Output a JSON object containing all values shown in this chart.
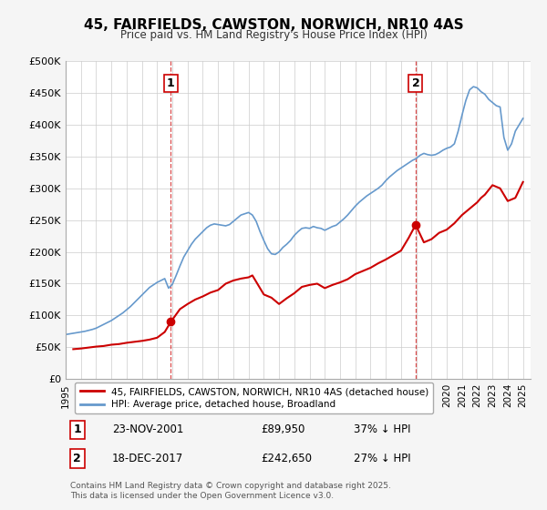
{
  "title": "45, FAIRFIELDS, CAWSTON, NORWICH, NR10 4AS",
  "subtitle": "Price paid vs. HM Land Registry's House Price Index (HPI)",
  "legend_line1": "45, FAIRFIELDS, CAWSTON, NORWICH, NR10 4AS (detached house)",
  "legend_line2": "HPI: Average price, detached house, Broadland",
  "sale1_label": "1",
  "sale1_date": "23-NOV-2001",
  "sale1_price": "£89,950",
  "sale1_hpi": "37% ↓ HPI",
  "sale2_label": "2",
  "sale2_date": "18-DEC-2017",
  "sale2_price": "£242,650",
  "sale2_hpi": "27% ↓ HPI",
  "sale1_x": 2001.9,
  "sale1_y": 89950,
  "sale2_x": 2017.96,
  "sale2_y": 242650,
  "vline1_x": 2001.9,
  "vline2_x": 2017.96,
  "property_color": "#cc0000",
  "hpi_color": "#6699cc",
  "background_color": "#f5f5f5",
  "plot_bg_color": "#ffffff",
  "grid_color": "#cccccc",
  "ylim": [
    0,
    500000
  ],
  "xlim": [
    1995,
    2025.5
  ],
  "yticks": [
    0,
    50000,
    100000,
    150000,
    200000,
    250000,
    300000,
    350000,
    400000,
    450000,
    500000
  ],
  "ytick_labels": [
    "£0",
    "£50K",
    "£100K",
    "£150K",
    "£200K",
    "£250K",
    "£300K",
    "£350K",
    "£400K",
    "£450K",
    "£500K"
  ],
  "xticks": [
    1995,
    1996,
    1997,
    1998,
    1999,
    2000,
    2001,
    2002,
    2003,
    2004,
    2005,
    2006,
    2007,
    2008,
    2009,
    2010,
    2011,
    2012,
    2013,
    2014,
    2015,
    2016,
    2017,
    2018,
    2019,
    2020,
    2021,
    2022,
    2023,
    2024,
    2025
  ],
  "footnote": "Contains HM Land Registry data © Crown copyright and database right 2025.\nThis data is licensed under the Open Government Licence v3.0.",
  "hpi_data_x": [
    1995.0,
    1995.25,
    1995.5,
    1995.75,
    1996.0,
    1996.25,
    1996.5,
    1996.75,
    1997.0,
    1997.25,
    1997.5,
    1997.75,
    1998.0,
    1998.25,
    1998.5,
    1998.75,
    1999.0,
    1999.25,
    1999.5,
    1999.75,
    2000.0,
    2000.25,
    2000.5,
    2000.75,
    2001.0,
    2001.25,
    2001.5,
    2001.75,
    2002.0,
    2002.25,
    2002.5,
    2002.75,
    2003.0,
    2003.25,
    2003.5,
    2003.75,
    2004.0,
    2004.25,
    2004.5,
    2004.75,
    2005.0,
    2005.25,
    2005.5,
    2005.75,
    2006.0,
    2006.25,
    2006.5,
    2006.75,
    2007.0,
    2007.25,
    2007.5,
    2007.75,
    2008.0,
    2008.25,
    2008.5,
    2008.75,
    2009.0,
    2009.25,
    2009.5,
    2009.75,
    2010.0,
    2010.25,
    2010.5,
    2010.75,
    2011.0,
    2011.25,
    2011.5,
    2011.75,
    2012.0,
    2012.25,
    2012.5,
    2012.75,
    2013.0,
    2013.25,
    2013.5,
    2013.75,
    2014.0,
    2014.25,
    2014.5,
    2014.75,
    2015.0,
    2015.25,
    2015.5,
    2015.75,
    2016.0,
    2016.25,
    2016.5,
    2016.75,
    2017.0,
    2017.25,
    2017.5,
    2017.75,
    2018.0,
    2018.25,
    2018.5,
    2018.75,
    2019.0,
    2019.25,
    2019.5,
    2019.75,
    2020.0,
    2020.25,
    2020.5,
    2020.75,
    2021.0,
    2021.25,
    2021.5,
    2021.75,
    2022.0,
    2022.25,
    2022.5,
    2022.75,
    2023.0,
    2023.25,
    2023.5,
    2023.75,
    2024.0,
    2024.25,
    2024.5,
    2024.75,
    2025.0
  ],
  "hpi_data_y": [
    70000,
    71000,
    72000,
    73000,
    74000,
    75000,
    76500,
    78000,
    80000,
    83000,
    86000,
    89000,
    92000,
    96000,
    100000,
    104000,
    109000,
    114000,
    120000,
    126000,
    132000,
    138000,
    144000,
    148000,
    152000,
    155000,
    158000,
    143000,
    149000,
    163000,
    178000,
    192000,
    202000,
    212000,
    220000,
    226000,
    232000,
    238000,
    242000,
    244000,
    243000,
    242000,
    241000,
    243000,
    248000,
    253000,
    258000,
    260000,
    262000,
    258000,
    248000,
    232000,
    218000,
    205000,
    197000,
    196000,
    200000,
    207000,
    212000,
    218000,
    226000,
    232000,
    237000,
    238000,
    237000,
    240000,
    238000,
    237000,
    234000,
    237000,
    240000,
    242000,
    247000,
    252000,
    258000,
    265000,
    272000,
    278000,
    283000,
    288000,
    292000,
    296000,
    300000,
    305000,
    312000,
    318000,
    323000,
    328000,
    332000,
    336000,
    340000,
    344000,
    347000,
    352000,
    355000,
    353000,
    352000,
    353000,
    356000,
    360000,
    363000,
    365000,
    370000,
    390000,
    415000,
    438000,
    455000,
    460000,
    458000,
    452000,
    448000,
    440000,
    435000,
    430000,
    428000,
    380000,
    360000,
    370000,
    390000,
    400000,
    410000
  ],
  "property_data_x": [
    1995.5,
    1996.0,
    1996.5,
    1997.0,
    1997.5,
    1998.0,
    1998.5,
    1999.0,
    1999.5,
    2000.0,
    2000.5,
    2001.0,
    2001.5,
    2001.9,
    2002.5,
    2003.0,
    2003.5,
    2004.0,
    2004.25,
    2004.5,
    2005.0,
    2005.5,
    2006.0,
    2006.5,
    2007.0,
    2007.25,
    2007.5,
    2008.0,
    2008.5,
    2009.0,
    2009.5,
    2010.0,
    2010.5,
    2011.0,
    2011.5,
    2012.0,
    2012.5,
    2013.0,
    2013.5,
    2014.0,
    2014.5,
    2015.0,
    2015.5,
    2016.0,
    2016.5,
    2017.0,
    2017.5,
    2017.96,
    2018.5,
    2019.0,
    2019.5,
    2020.0,
    2020.5,
    2021.0,
    2021.5,
    2022.0,
    2022.25,
    2022.5,
    2023.0,
    2023.5,
    2024.0,
    2024.5,
    2025.0
  ],
  "property_data_y": [
    47000,
    48000,
    49500,
    51000,
    52000,
    54000,
    55000,
    57000,
    58500,
    60000,
    62000,
    65000,
    74000,
    89950,
    110000,
    118000,
    125000,
    130000,
    133000,
    136000,
    140000,
    150000,
    155000,
    158000,
    160000,
    163000,
    153000,
    133000,
    128000,
    118000,
    127000,
    135000,
    145000,
    148000,
    150000,
    143000,
    148000,
    152000,
    157000,
    165000,
    170000,
    175000,
    182000,
    188000,
    195000,
    202000,
    222000,
    242650,
    215000,
    220000,
    230000,
    235000,
    245000,
    258000,
    268000,
    278000,
    285000,
    290000,
    305000,
    300000,
    280000,
    285000,
    310000
  ]
}
